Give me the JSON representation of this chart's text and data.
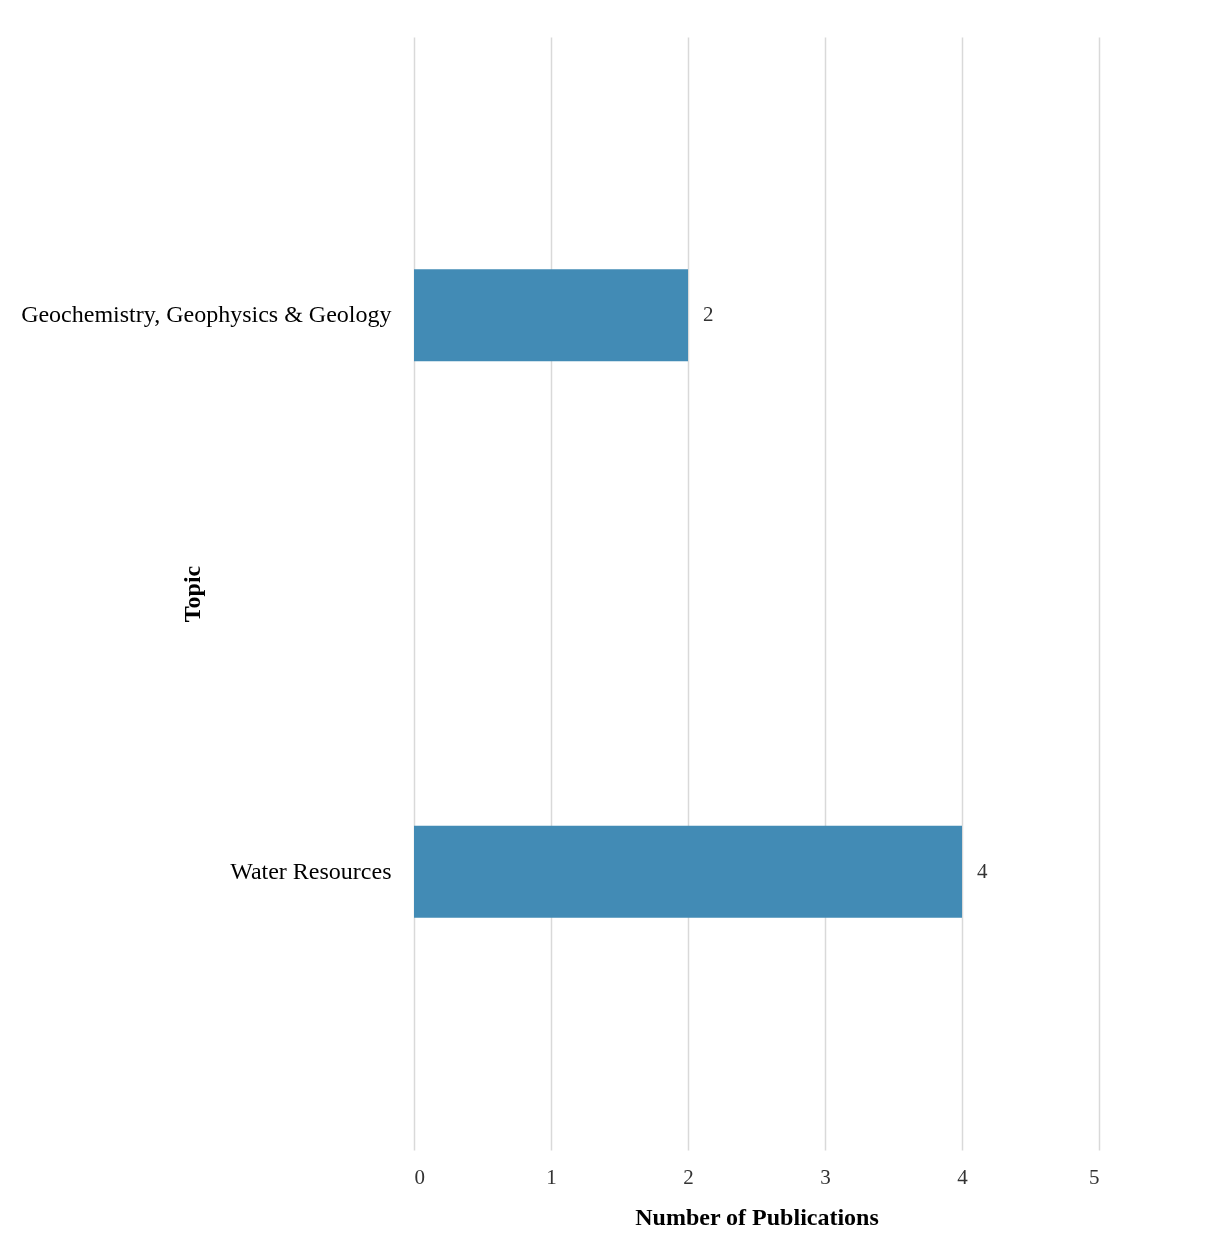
{
  "chart_data": {
    "type": "bar",
    "orientation": "horizontal",
    "xlabel": "Number of Publications",
    "ylabel": "Topic",
    "categories": [
      "Geochemistry, Geophysics & Geology",
      "Water Resources"
    ],
    "values": [
      2,
      4
    ],
    "color": "#428bb5",
    "xlim": [
      0,
      5
    ],
    "xticks": [
      0,
      1,
      2,
      3,
      4,
      5
    ],
    "grid": "x",
    "data_labels": true
  }
}
